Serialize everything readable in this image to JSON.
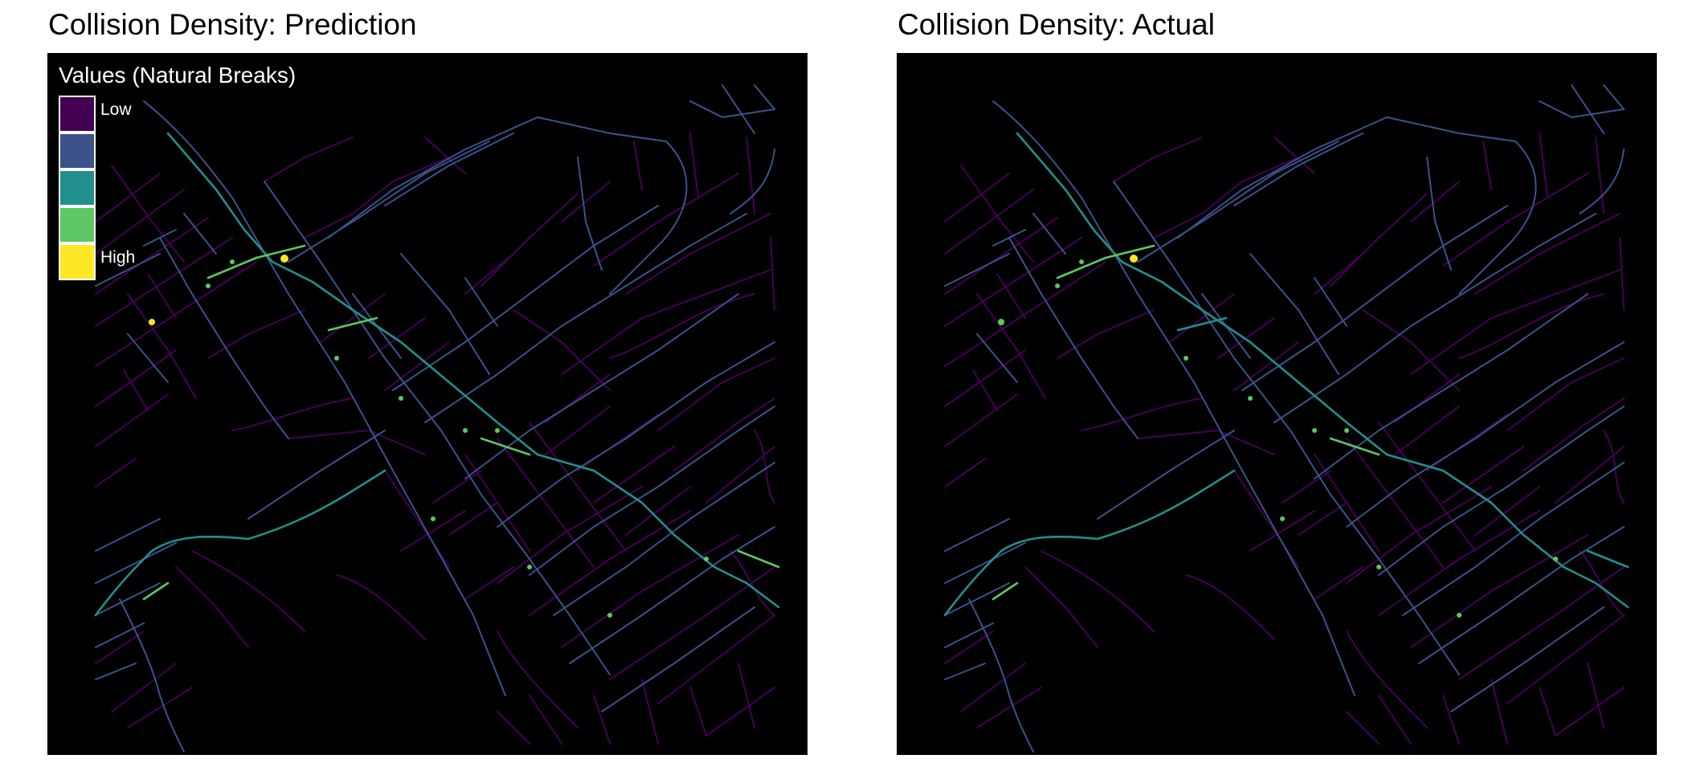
{
  "colors": {
    "background": "#000000",
    "class_1": "#440154",
    "class_2": "#3b528b",
    "class_3": "#21908c",
    "class_4": "#5dc863",
    "class_5": "#fde725"
  },
  "panels": [
    {
      "title": "Collision Density: Prediction",
      "show_legend": true
    },
    {
      "title": "Collision Density: Actual",
      "show_legend": false
    }
  ],
  "legend": {
    "title": "Values (Natural Breaks)",
    "items": [
      {
        "label": "Low",
        "color": "#440154"
      },
      {
        "label": "",
        "color": "#3b528b"
      },
      {
        "label": "",
        "color": "#21908c"
      },
      {
        "label": "",
        "color": "#5dc863"
      },
      {
        "label": "High",
        "color": "#fde725"
      }
    ]
  }
}
